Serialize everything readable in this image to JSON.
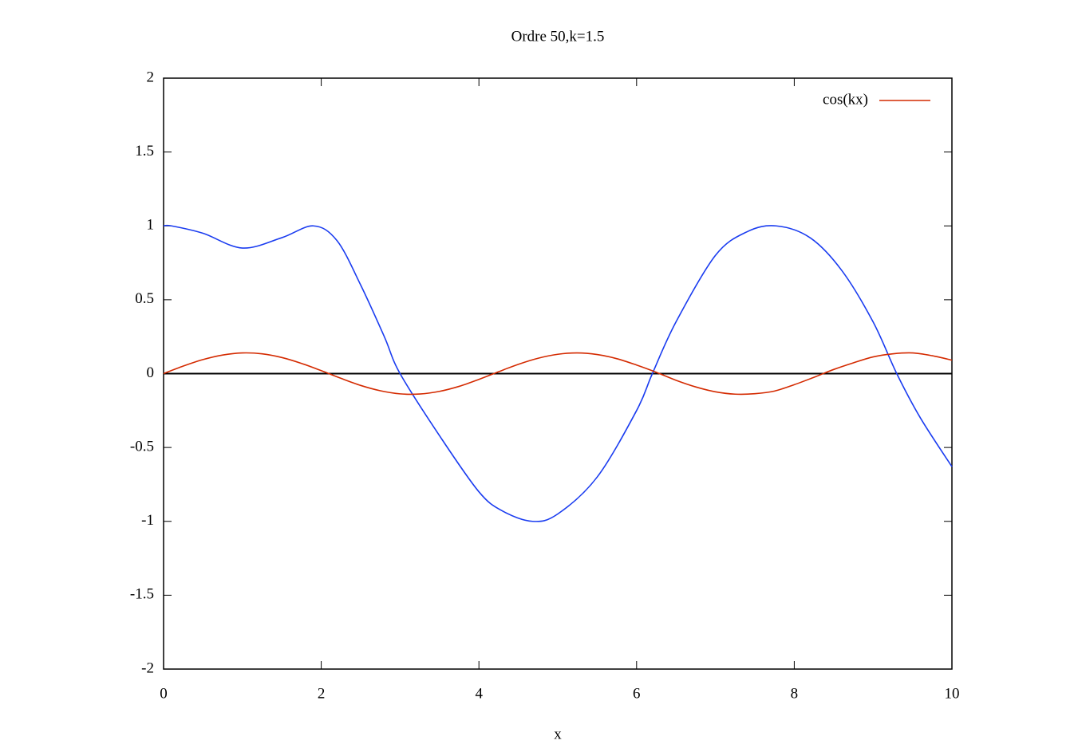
{
  "chart_data": {
    "type": "line",
    "title": "Ordre 50,k=1.5",
    "xlabel": "x",
    "xlim": [
      0,
      10
    ],
    "xticks": [
      0,
      2,
      4,
      6,
      8,
      10
    ],
    "ylim": [
      -2,
      2
    ],
    "yticks": [
      -2,
      -1.5,
      -1,
      -0.5,
      0,
      0.5,
      1,
      1.5,
      2
    ],
    "zeroaxis": true,
    "legend": "top-right",
    "series": [
      {
        "color": "#1a3cf0",
        "x": [
          0,
          0.1,
          0.5,
          1.0,
          1.5,
          1.9,
          2.2,
          2.5,
          2.8,
          3.0,
          3.5,
          4.0,
          4.3,
          4.68,
          5.0,
          5.5,
          6.0,
          6.2,
          6.5,
          7.0,
          7.4,
          7.77,
          8.2,
          8.6,
          9.0,
          9.3,
          9.6,
          10
        ],
        "values": [
          1.0,
          1.0,
          0.95,
          0.85,
          0.92,
          1.0,
          0.9,
          0.6,
          0.25,
          0.0,
          -0.42,
          -0.8,
          -0.93,
          -1.0,
          -0.95,
          -0.7,
          -0.25,
          0.0,
          0.35,
          0.8,
          0.96,
          1.0,
          0.92,
          0.7,
          0.35,
          0.0,
          -0.3,
          -0.63
        ]
      },
      {
        "name": "cos(kx)",
        "color": "#d42a00",
        "x": [
          0,
          0.25,
          0.5,
          0.75,
          1,
          1.25,
          1.5,
          1.75,
          2,
          2.25,
          2.5,
          2.75,
          3,
          3.25,
          3.5,
          3.75,
          4,
          4.25,
          4.5,
          4.75,
          5,
          5.25,
          5.5,
          5.75,
          6,
          6.25,
          6.5,
          6.75,
          7,
          7.25,
          7.5,
          7.75,
          8,
          8.25,
          8.5,
          8.75,
          9,
          9.25,
          9.5,
          9.75,
          10
        ],
        "values": [
          0,
          0.051,
          0.095,
          0.126,
          0.14,
          0.134,
          0.109,
          0.069,
          0.02,
          -0.032,
          -0.08,
          -0.116,
          -0.137,
          -0.138,
          -0.12,
          -0.086,
          -0.039,
          0.013,
          0.063,
          0.104,
          0.131,
          0.14,
          0.129,
          0.101,
          0.058,
          0.009,
          -0.045,
          -0.09,
          -0.123,
          -0.139,
          -0.136,
          -0.118,
          -0.075,
          -0.025,
          0.028,
          0.073,
          0.113,
          0.134,
          0.14,
          0.121,
          0.091
        ]
      }
    ]
  }
}
